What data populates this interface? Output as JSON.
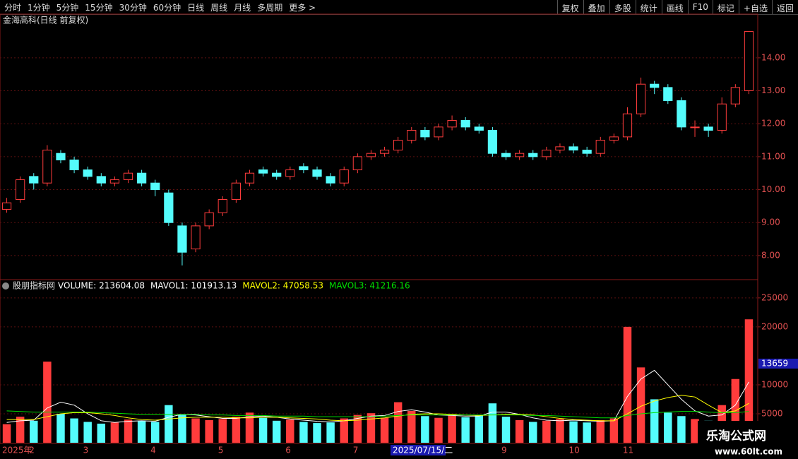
{
  "toolbar": {
    "left": [
      "分时",
      "1分钟",
      "5分钟",
      "15分钟",
      "30分钟",
      "60分钟",
      "日线",
      "周线",
      "月线",
      "多周期",
      "更多 >"
    ],
    "right": [
      "复权",
      "叠加",
      "多股",
      "统计",
      "画线",
      "F10",
      "标记",
      "+自选",
      "返回"
    ]
  },
  "chart_data": [
    {
      "type": "candlestick",
      "title": "金海高科(日线 前复权)",
      "up_color": "#ff3c3c",
      "down_color": "#54fcfc",
      "categories": [
        "2025年",
        null,
        "2",
        null,
        null,
        null,
        "3",
        null,
        null,
        null,
        null,
        "4",
        null,
        null,
        null,
        null,
        "5",
        null,
        null,
        null,
        null,
        "6",
        null,
        null,
        null,
        null,
        "7",
        null,
        null,
        null,
        null,
        null,
        null,
        null,
        null,
        null,
        null,
        "9",
        null,
        null,
        null,
        null,
        "10",
        null,
        null,
        null,
        "11",
        null,
        null,
        null,
        null,
        null,
        null,
        null,
        null,
        null
      ],
      "open": [
        9.4,
        9.7,
        10.4,
        10.2,
        11.1,
        10.9,
        10.6,
        10.4,
        10.2,
        10.3,
        10.5,
        10.2,
        9.9,
        8.9,
        8.2,
        8.9,
        9.3,
        9.7,
        10.2,
        10.6,
        10.5,
        10.4,
        10.7,
        10.6,
        10.4,
        10.2,
        10.6,
        11.0,
        11.1,
        11.2,
        11.5,
        11.8,
        11.6,
        11.9,
        12.1,
        11.9,
        11.8,
        11.1,
        11.0,
        11.1,
        11.0,
        11.2,
        11.3,
        11.2,
        11.1,
        11.5,
        11.6,
        12.3,
        13.2,
        13.1,
        12.7,
        11.9,
        11.9,
        11.8,
        12.6,
        13.0
      ],
      "high": [
        9.75,
        10.4,
        10.5,
        11.35,
        11.2,
        11.0,
        10.7,
        10.5,
        10.4,
        10.6,
        10.6,
        10.3,
        10.0,
        9.0,
        9.0,
        9.4,
        9.8,
        10.3,
        10.6,
        10.7,
        10.6,
        10.7,
        10.8,
        10.7,
        10.5,
        10.7,
        11.1,
        11.2,
        11.3,
        11.6,
        11.9,
        11.9,
        12.0,
        12.25,
        12.2,
        12.0,
        11.9,
        11.2,
        11.2,
        11.2,
        11.3,
        11.4,
        11.4,
        11.3,
        11.6,
        11.7,
        12.5,
        13.4,
        13.3,
        13.2,
        12.8,
        12.1,
        12.0,
        12.8,
        13.2,
        14.8
      ],
      "low": [
        9.3,
        9.6,
        10.0,
        10.1,
        10.8,
        10.5,
        10.3,
        10.1,
        10.1,
        10.2,
        10.1,
        9.8,
        8.9,
        7.7,
        8.1,
        8.8,
        9.2,
        9.6,
        10.1,
        10.4,
        10.3,
        10.3,
        10.5,
        10.3,
        10.1,
        10.1,
        10.5,
        10.9,
        11.0,
        11.1,
        11.4,
        11.5,
        11.5,
        11.8,
        11.8,
        11.7,
        11.0,
        10.9,
        10.9,
        10.9,
        10.9,
        11.1,
        11.1,
        11.0,
        11.0,
        11.4,
        11.5,
        12.2,
        12.9,
        12.6,
        11.8,
        11.6,
        11.6,
        11.7,
        12.5,
        12.9
      ],
      "close": [
        9.6,
        10.3,
        10.2,
        11.2,
        10.9,
        10.6,
        10.4,
        10.2,
        10.3,
        10.5,
        10.2,
        10.0,
        9.0,
        8.1,
        8.9,
        9.3,
        9.7,
        10.2,
        10.5,
        10.5,
        10.4,
        10.6,
        10.6,
        10.4,
        10.2,
        10.6,
        11.0,
        11.1,
        11.2,
        11.5,
        11.8,
        11.6,
        11.9,
        12.1,
        11.9,
        11.8,
        11.1,
        11.0,
        11.1,
        11.0,
        11.2,
        11.3,
        11.2,
        11.1,
        11.5,
        11.6,
        12.3,
        13.2,
        13.1,
        12.7,
        11.9,
        11.9,
        11.8,
        12.6,
        13.1,
        14.8
      ],
      "ylim": [
        7.29,
        14.94
      ],
      "yticks": [
        {
          "value": 8,
          "label": "8.00"
        },
        {
          "value": 9,
          "label": "9.00"
        },
        {
          "value": 10,
          "label": "10.00"
        },
        {
          "value": 11,
          "label": "11.00"
        },
        {
          "value": 12,
          "label": "12.00"
        },
        {
          "value": 13,
          "label": "13.00"
        },
        {
          "value": 14,
          "label": "14.00"
        }
      ],
      "grid": true
    },
    {
      "type": "volume",
      "title": "股朋指标网",
      "readouts": [
        {
          "text": "VOLUME: 213604.08",
          "color": "#ffffff"
        },
        {
          "text": "MAVOL1: 101913.13",
          "color": "#ffffff"
        },
        {
          "text": "MAVOL2: 47058.53",
          "color": "#ffff00"
        },
        {
          "text": "MAVOL3: 41216.16",
          "color": "#00e000"
        }
      ],
      "values": [
        3200,
        4500,
        3800,
        14000,
        5000,
        4200,
        3600,
        3300,
        3500,
        4000,
        3800,
        3600,
        6500,
        4800,
        4200,
        3900,
        4100,
        4500,
        5200,
        4300,
        3800,
        4000,
        3600,
        3400,
        3500,
        4200,
        4800,
        5100,
        4300,
        7000,
        5500,
        4600,
        4300,
        5000,
        4400,
        4800,
        6800,
        4500,
        3900,
        3600,
        3800,
        4100,
        3700,
        3500,
        3900,
        4200,
        20000,
        13000,
        7500,
        5200,
        4600,
        4100,
        3800,
        6500,
        11000,
        21300
      ],
      "series": [
        {
          "color": "#ffffff",
          "values": [
            3500,
            3800,
            3900,
            6000,
            7000,
            6500,
            5000,
            3800,
            3500,
            3700,
            3800,
            3700,
            4400,
            4900,
            4800,
            4500,
            4200,
            4200,
            4500,
            4600,
            4400,
            4100,
            3900,
            3700,
            3600,
            3800,
            4200,
            4600,
            4700,
            5400,
            5700,
            5300,
            4800,
            4700,
            4600,
            4600,
            5300,
            5300,
            4900,
            4300,
            3900,
            3800,
            3900,
            3800,
            3700,
            3800,
            8000,
            11000,
            12500,
            10000,
            7500,
            5500,
            4600,
            4800,
            6500,
            10500
          ]
        },
        {
          "color": "#ffff00",
          "values": [
            4000,
            4000,
            4000,
            4500,
            5000,
            5200,
            5200,
            5000,
            4700,
            4300,
            4000,
            3900,
            4100,
            4300,
            4400,
            4400,
            4400,
            4300,
            4300,
            4400,
            4400,
            4300,
            4200,
            4100,
            3900,
            3800,
            3900,
            4100,
            4300,
            4600,
            4900,
            5000,
            5000,
            4900,
            4800,
            4700,
            4800,
            4900,
            4900,
            4800,
            4500,
            4200,
            4000,
            3900,
            3800,
            3800,
            5000,
            6300,
            7200,
            7800,
            8200,
            7900,
            6500,
            5200,
            5500,
            6800
          ]
        },
        {
          "color": "#00e000",
          "values": [
            5500,
            5400,
            5300,
            5300,
            5300,
            5300,
            5300,
            5200,
            5100,
            5000,
            4900,
            4900,
            4900,
            4900,
            4900,
            4800,
            4800,
            4700,
            4700,
            4700,
            4600,
            4600,
            4600,
            4500,
            4500,
            4500,
            4500,
            4500,
            4600,
            4700,
            4800,
            4800,
            4800,
            4800,
            4800,
            4800,
            4800,
            4800,
            4800,
            4700,
            4700,
            4600,
            4500,
            4400,
            4300,
            4300,
            4700,
            5000,
            5200,
            5300,
            5400,
            5400,
            5300,
            5200,
            5200,
            5400
          ]
        }
      ],
      "ylim": [
        0,
        26200
      ],
      "yticks": [
        5000,
        10000,
        20000,
        25000
      ],
      "grid": true,
      "cursor_value": 13659
    }
  ],
  "cursor_date": "2025/07/15/二",
  "watermark": {
    "name": "乐淘公式网",
    "url": "www.60lt.com"
  }
}
